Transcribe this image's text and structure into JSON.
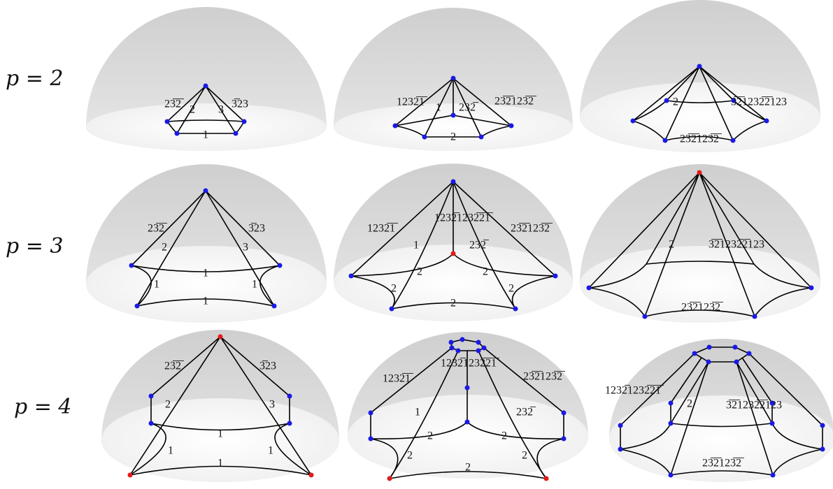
{
  "rows": [
    {
      "label": "p = 2"
    },
    {
      "label": "p = 3"
    },
    {
      "label": "p = 4"
    }
  ],
  "panels": {
    "r1c1": [
      "23̅2̅",
      "2",
      "3",
      "3̅23",
      "1"
    ],
    "r1c2": [
      "1232̅1̅",
      "1",
      "232̅",
      "23̅2̅123̅2̅",
      "2"
    ],
    "r1c3": [
      "2",
      "3̅2̅1232̅2̅123",
      "23̅2̅123̅2̅"
    ],
    "r2c1": [
      "23̅2̅",
      "3̅23",
      "2",
      "3",
      "1",
      "1",
      "1",
      "1"
    ],
    "r2c2": [
      "1232̅1̅",
      "1232̅1232̅2̅1̅",
      "23̅2̅123̅2̅",
      "1",
      "232̅",
      "2",
      "2",
      "2",
      "2",
      "2"
    ],
    "r2c3": [
      "2",
      "3̅2̅1232̅2̅123",
      "23̅2̅123̅2̅"
    ],
    "r3c1": [
      "23̅2̅",
      "3̅23",
      "2",
      "3",
      "1",
      "1",
      "1",
      "1"
    ],
    "r3c2": [
      "1232̅1̅",
      "1232̅1232̅2̅1̅",
      "23̅2̅123̅2̅",
      "1",
      "232̅",
      "2",
      "2",
      "2",
      "2",
      "2"
    ],
    "r3c3": [
      "1232̅1232̅2̅1̅",
      "2",
      "3̅2̅1232̅2̅123",
      "23̅2̅123̅2̅"
    ]
  }
}
